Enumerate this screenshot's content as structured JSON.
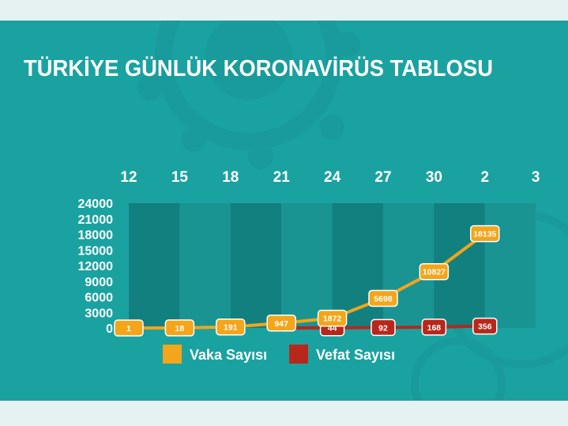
{
  "colors": {
    "background": "#1aa2a1",
    "plot_dark": "#12807f",
    "plot_light": "#1a9493",
    "cases": "#f3a51b",
    "deaths": "#b7271b"
  },
  "chart_data": {
    "type": "line",
    "title": "TÜRKİYE GÜNLÜK KORONAVİRÜS TABLOSU",
    "xlabel": "",
    "ylabel": "",
    "x_ticks": [
      "12",
      "15",
      "18",
      "21",
      "24",
      "27",
      "30",
      "2",
      "3"
    ],
    "y_ticks": [
      "24000",
      "21000",
      "18000",
      "15000",
      "12000",
      "9000",
      "6000",
      "3000",
      "0"
    ],
    "ylim": [
      0,
      24000
    ],
    "grid": false,
    "legend_position": "bottom",
    "series": [
      {
        "name": "Vaka Sayısı",
        "color": "#f3a51b",
        "x": [
          "12",
          "15",
          "18",
          "21",
          "24",
          "27",
          "30",
          "2"
        ],
        "values": [
          1,
          18,
          191,
          947,
          1872,
          5698,
          10827,
          18135
        ],
        "labels": [
          "1",
          "18",
          "191",
          "947",
          "1872",
          "5698",
          "10827",
          "18135"
        ]
      },
      {
        "name": "Vefat Sayısı",
        "color": "#b7271b",
        "x": [
          "21",
          "24",
          "27",
          "30",
          "2"
        ],
        "values": [
          1,
          44,
          92,
          168,
          356
        ],
        "labels": [
          "",
          "44",
          "92",
          "168",
          "356"
        ]
      }
    ]
  }
}
